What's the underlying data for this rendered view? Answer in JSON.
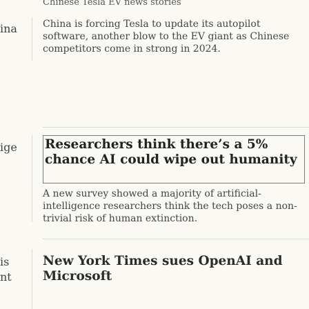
{
  "top_fragment": "Chinese Tesla EV news stories",
  "left_fragments": [
    "ina",
    "ige",
    "is",
    "nt"
  ],
  "stories": [
    {
      "summary": "China is forcing Tesla to update its autopilot software, another blow to the EV giant as Chinese competitors come in strong in 2024."
    },
    {
      "headline": "Researchers think there’s a 5% chance AI could wipe out humanity",
      "summary": "A new survey showed a majority of artificial-intelligence researchers think the tech poses a non-trivial risk of human extinction."
    },
    {
      "headline": "New York Times sues OpenAI and Microsoft"
    }
  ]
}
